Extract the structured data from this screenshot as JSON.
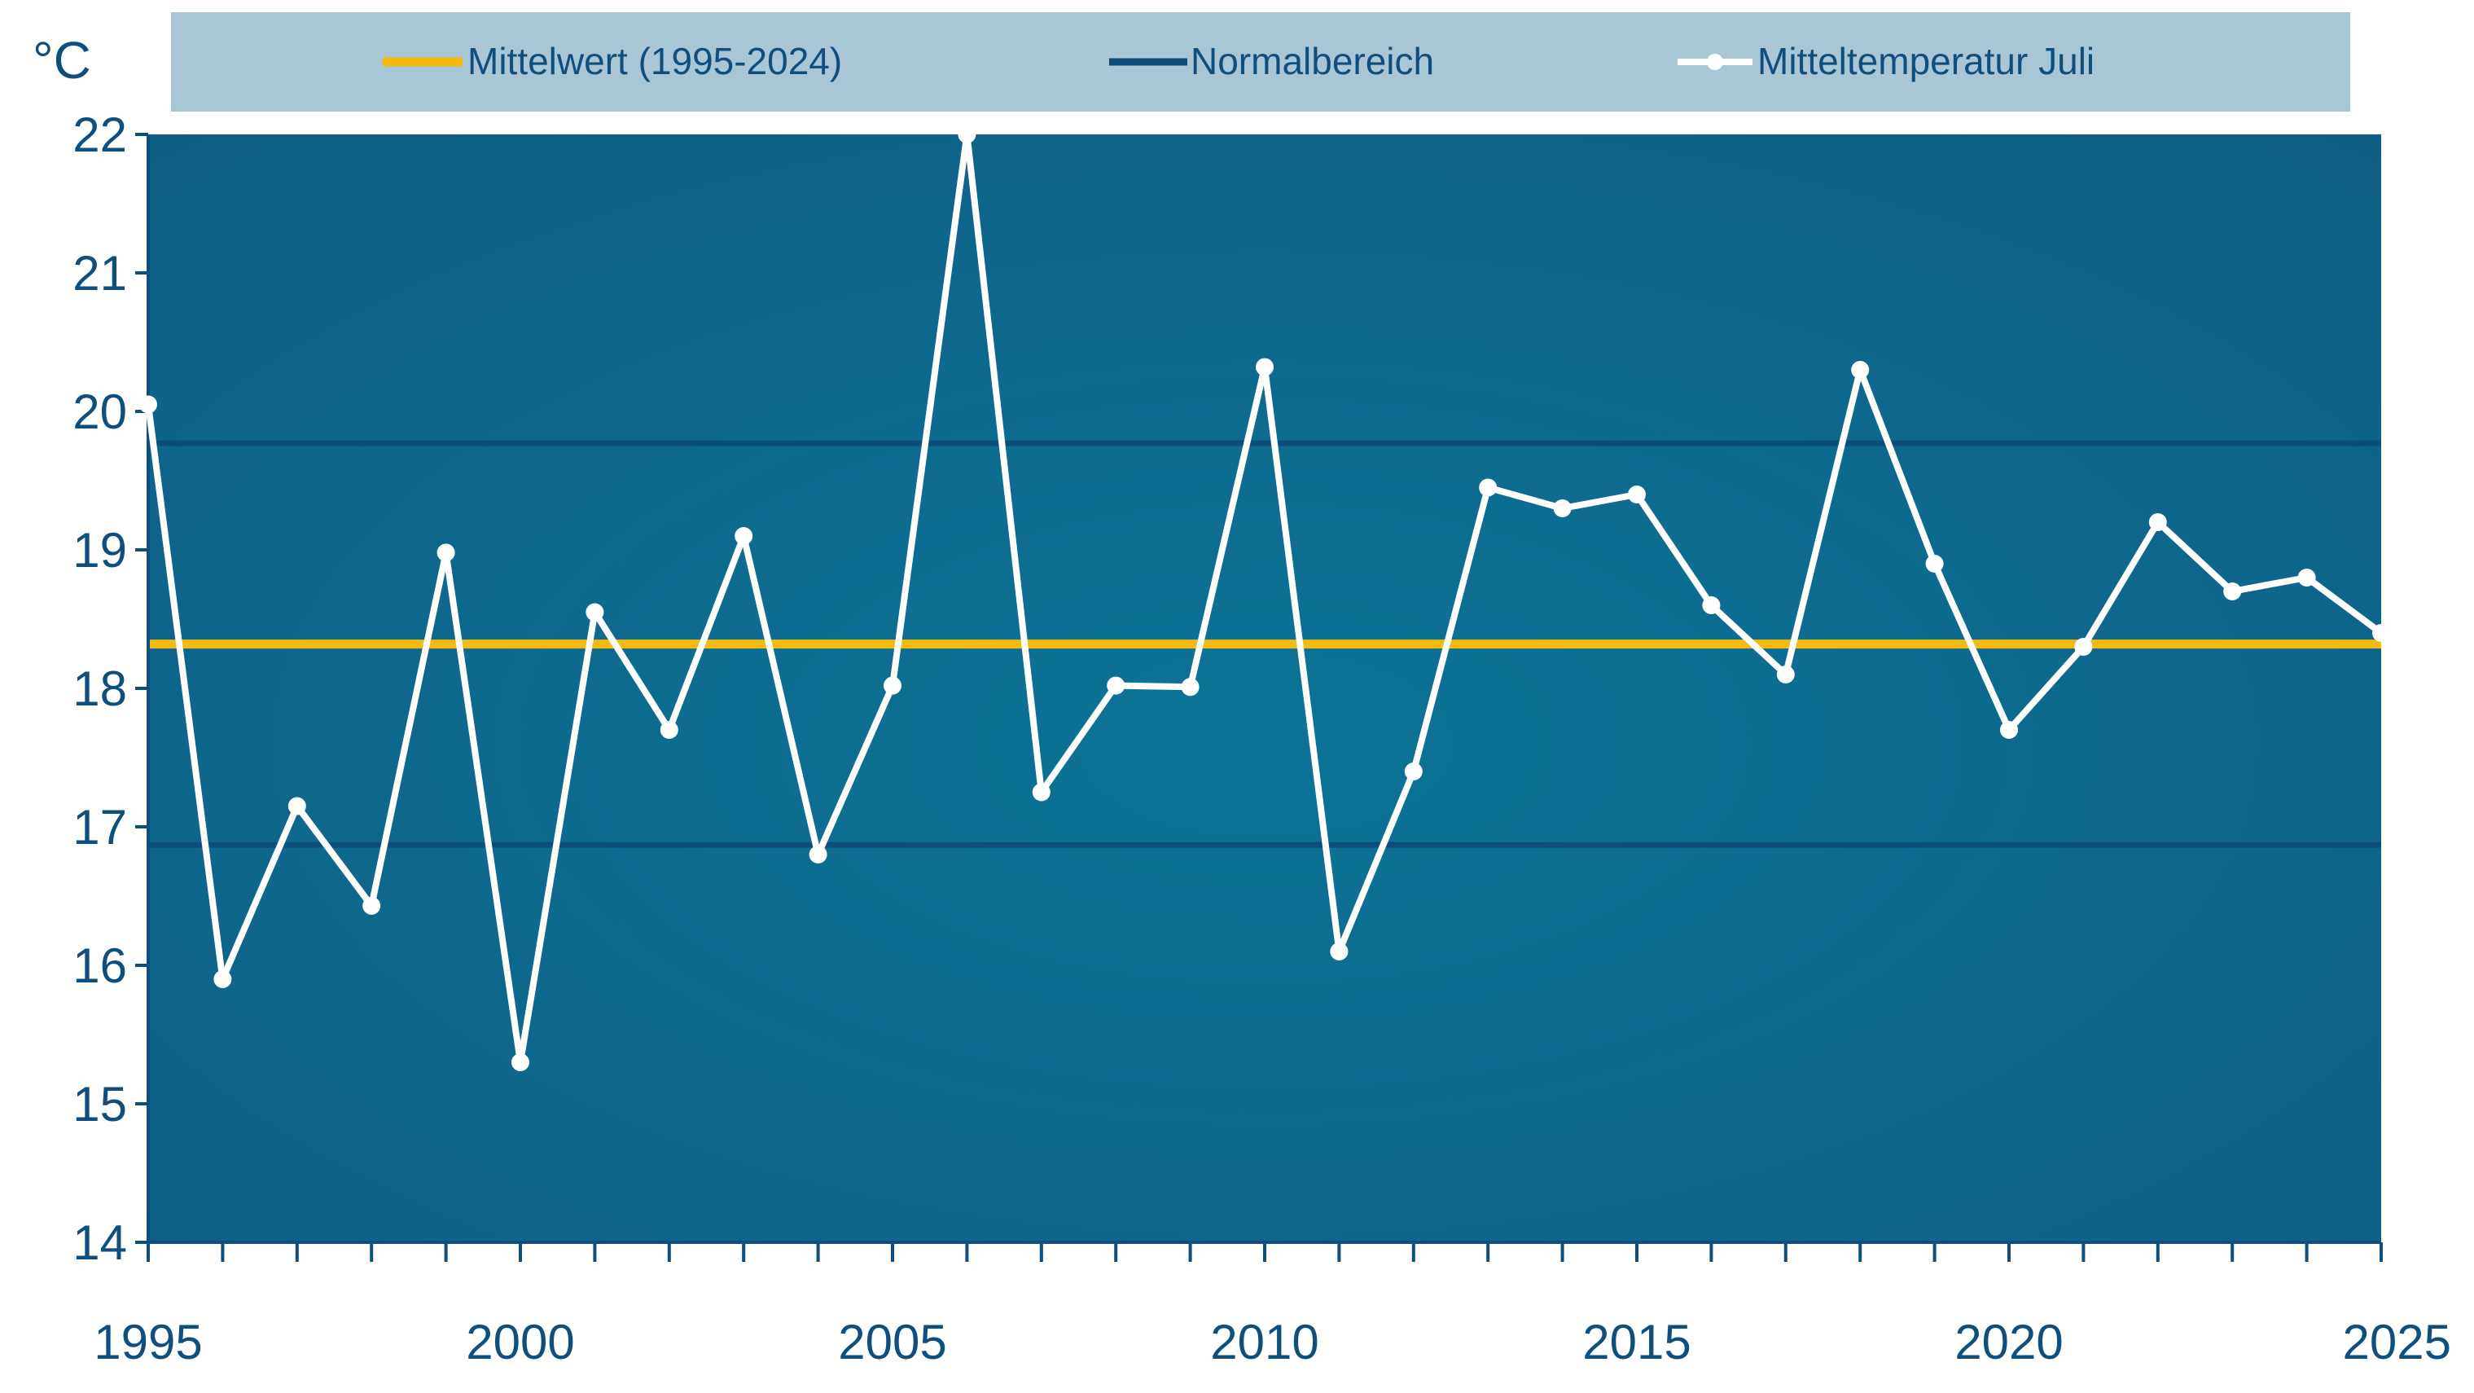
{
  "chart_data": {
    "type": "line",
    "ylabel": "°C",
    "xlim": [
      1995,
      2025
    ],
    "ylim": [
      14,
      22
    ],
    "x_ticks": [
      1995,
      2000,
      2005,
      2010,
      2015,
      2020,
      2025
    ],
    "y_ticks": [
      14,
      15,
      16,
      17,
      18,
      19,
      20,
      21,
      22
    ],
    "legend_position": "top",
    "grid": false,
    "colors": {
      "plot_background": "#0c7396",
      "plot_background_edge": "#0f5e86",
      "mean_line": "#f6b90e",
      "normal_range": "#0c4e7b",
      "series": "#ffffff",
      "legend_background": "#a9c6d4",
      "text": "#0e4f7e"
    },
    "mean": {
      "name": "Mittelwert (1995-2024)",
      "value": 18.32
    },
    "normal_range": {
      "name": "Normalbereich",
      "lower": 16.87,
      "upper": 19.77
    },
    "series": [
      {
        "name": "Mitteltemperatur Juli",
        "x": [
          1995,
          1996,
          1997,
          1998,
          1999,
          2000,
          2001,
          2002,
          2003,
          2004,
          2005,
          2006,
          2007,
          2008,
          2009,
          2010,
          2011,
          2012,
          2013,
          2014,
          2015,
          2016,
          2017,
          2018,
          2019,
          2020,
          2021,
          2022,
          2023,
          2024,
          2025
        ],
        "values": [
          20.05,
          15.9,
          17.15,
          16.43,
          18.98,
          15.3,
          18.55,
          17.7,
          19.1,
          16.8,
          18.02,
          22.0,
          17.25,
          18.02,
          18.01,
          20.32,
          16.1,
          17.4,
          19.45,
          19.3,
          19.4,
          18.6,
          18.1,
          20.3,
          18.9,
          17.7,
          18.3,
          19.2,
          18.7,
          18.8,
          18.4
        ]
      }
    ]
  }
}
